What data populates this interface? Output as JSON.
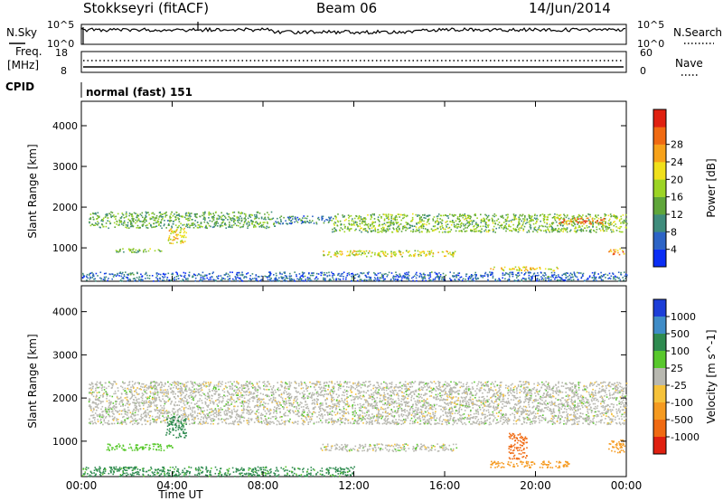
{
  "header": {
    "station": "Stokkseyri (fitACF)",
    "beam": "Beam 06",
    "date": "14/Jun/2014"
  },
  "top_panels": {
    "nsky_label": "N.Sky",
    "nsearch_label": "N.Search",
    "noise_tick_top": "10^5",
    "noise_tick_bottom": "10^0",
    "freq_label_1": "Freq.",
    "freq_label_2": "[MHz]",
    "freq_tick_top": "18",
    "freq_tick_bottom": "8",
    "nave_label": "Nave",
    "nave_tick_top": "60",
    "nave_tick_bottom": "0",
    "cpid_label": "CPID",
    "cpid_value": "normal (fast) 151"
  },
  "chart_data": [
    {
      "type": "heatmap",
      "title": "",
      "xlabel": "Time UT",
      "ylabel": "Slant Range [km]",
      "xlim": [
        0,
        24
      ],
      "ylim": [
        180,
        4600
      ],
      "x_ticks": [
        "00:00",
        "04:00",
        "08:00",
        "12:00",
        "16:00",
        "20:00",
        "00:00"
      ],
      "y_ticks": [
        1000,
        2000,
        3000,
        4000
      ],
      "colorbar": {
        "label": "Power [dB]",
        "ticks": [
          4,
          8,
          12,
          16,
          20,
          24,
          28
        ],
        "colors": [
          "#0b2ef5",
          "#2d64c6",
          "#3f8c7c",
          "#5fa63a",
          "#9cd424",
          "#f0e01b",
          "#f7a21a",
          "#f06a12",
          "#e02010"
        ]
      },
      "echo_bands": [
        {
          "t_start": 0.3,
          "t_end": 8.5,
          "range_start": 1500,
          "range_end": 1900,
          "level": 12
        },
        {
          "t_start": 8.5,
          "t_end": 11.0,
          "range_start": 1600,
          "range_end": 1800,
          "level": 8
        },
        {
          "t_start": 11.0,
          "t_end": 24.0,
          "range_start": 1400,
          "range_end": 1850,
          "level": 14
        },
        {
          "t_start": 1.5,
          "t_end": 3.5,
          "range_start": 900,
          "range_end": 1000,
          "level": 14
        },
        {
          "t_start": 3.8,
          "t_end": 4.6,
          "range_start": 1100,
          "range_end": 1500,
          "level": 20
        },
        {
          "t_start": 10.5,
          "t_end": 16.5,
          "range_start": 800,
          "range_end": 950,
          "level": 18
        },
        {
          "t_start": 18.0,
          "t_end": 21.0,
          "range_start": 450,
          "range_end": 550,
          "level": 20
        },
        {
          "t_start": 21.0,
          "t_end": 23.0,
          "range_start": 1600,
          "range_end": 1750,
          "level": 26
        },
        {
          "t_start": 23.2,
          "t_end": 23.9,
          "range_start": 850,
          "range_end": 1000,
          "level": 24
        },
        {
          "t_start": 0.0,
          "t_end": 24.0,
          "range_start": 200,
          "range_end": 420,
          "level": 6
        }
      ]
    },
    {
      "type": "heatmap",
      "title": "",
      "xlabel": "Time UT",
      "ylabel": "Slant Range [km]",
      "xlim": [
        0,
        24
      ],
      "ylim": [
        180,
        4600
      ],
      "x_ticks": [
        "00:00",
        "04:00",
        "08:00",
        "12:00",
        "16:00",
        "20:00",
        "00:00"
      ],
      "y_ticks": [
        1000,
        2000,
        3000,
        4000
      ],
      "colorbar": {
        "label": "Velocity [m s^-1]",
        "ticks": [
          1000,
          500,
          100,
          25,
          -25,
          -100,
          -500,
          -1000
        ],
        "colors": [
          "#1c3ed8",
          "#3f8cc7",
          "#2f8b50",
          "#58c82c",
          "#b8b8b0",
          "#f6c23a",
          "#f59a20",
          "#f06a12",
          "#e02010"
        ]
      },
      "echo_bands": [
        {
          "t_start": 0.3,
          "t_end": 24.0,
          "range_start": 1400,
          "range_end": 2400,
          "velocity": 0
        },
        {
          "t_start": 3.7,
          "t_end": 4.6,
          "range_start": 1100,
          "range_end": 1600,
          "velocity": 300
        },
        {
          "t_start": 1.0,
          "t_end": 4.0,
          "range_start": 800,
          "range_end": 950,
          "velocity": 60
        },
        {
          "t_start": 10.5,
          "t_end": 16.5,
          "range_start": 780,
          "range_end": 950,
          "velocity": 0
        },
        {
          "t_start": 18.0,
          "t_end": 21.5,
          "range_start": 400,
          "range_end": 550,
          "velocity": -300
        },
        {
          "t_start": 18.8,
          "t_end": 19.6,
          "range_start": 600,
          "range_end": 1200,
          "velocity": -600
        },
        {
          "t_start": 23.2,
          "t_end": 23.9,
          "range_start": 750,
          "range_end": 1050,
          "velocity": -400
        },
        {
          "t_start": 0.0,
          "t_end": 12.0,
          "range_start": 200,
          "range_end": 420,
          "velocity": 120
        }
      ]
    }
  ]
}
